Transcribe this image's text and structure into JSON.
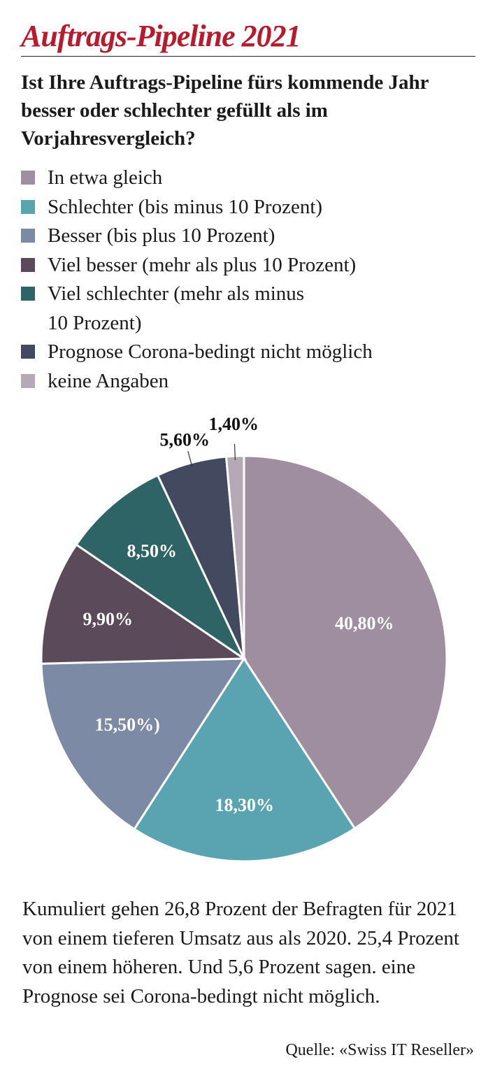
{
  "header": {
    "title": "Auftrags-Pipeline 2021",
    "question": "Ist Ihre Auftrags-Pipeline fürs kommende Jahr besser oder schlechter gefüllt als im Vorjahresvergleich?"
  },
  "chart_data": {
    "type": "pie",
    "legend_placement": "top",
    "categories": [
      "In etwa gleich",
      "Schlechter (bis minus 10 Prozent)",
      "Besser (bis plus 10 Prozent)",
      "Viel besser (mehr als plus 10 Prozent)",
      "Viel schlechter (mehr als minus 10 Prozent)",
      "Prognose Corona-bedingt nicht möglich",
      "keine Angaben"
    ],
    "values": [
      40.8,
      18.3,
      15.5,
      9.9,
      8.5,
      5.6,
      1.4
    ],
    "labels": [
      "40,80%",
      "18,30%",
      "15,50%)",
      "9,90%",
      "8,50%",
      "5,60%",
      "1,40%"
    ],
    "colors": [
      "#9e8e9f",
      "#5aa3b0",
      "#7c8aa6",
      "#5b4a5a",
      "#2f6466",
      "#43495e",
      "#b4a9b5"
    ],
    "label_colors": [
      "#ffffff",
      "#ffffff",
      "#ffffff",
      "#ffffff",
      "#ffffff",
      "#111111",
      "#111111"
    ]
  },
  "legend": {
    "items": [
      {
        "label": "In etwa gleich",
        "color": "#9e8e9f"
      },
      {
        "label": "Schlechter (bis minus 10 Prozent)",
        "color": "#5aa3b0"
      },
      {
        "label": "Besser (bis plus 10 Prozent)",
        "color": "#7c8aa6"
      },
      {
        "label": "Viel besser (mehr als plus 10 Prozent)",
        "color": "#5b4a5a"
      },
      {
        "label_line1": "Viel schlechter (mehr als minus",
        "label_line2": "10 Prozent)",
        "color": "#2f6466"
      },
      {
        "label": "Prognose Corona-bedingt nicht möglich",
        "color": "#43495e"
      },
      {
        "label": "keine Angaben",
        "color": "#b4a9b5"
      }
    ]
  },
  "footer": {
    "note": "Kumuliert gehen 26,8 Prozent der Befragten für 2021 von einem tieferen Umsatz aus als 2020. 25,4 Prozent von einem höheren. Und 5,6 Prozent sagen. eine Prognose sei Corona-bedingt nicht möglich.",
    "source": "Quelle: «Swiss IT Reseller»"
  }
}
